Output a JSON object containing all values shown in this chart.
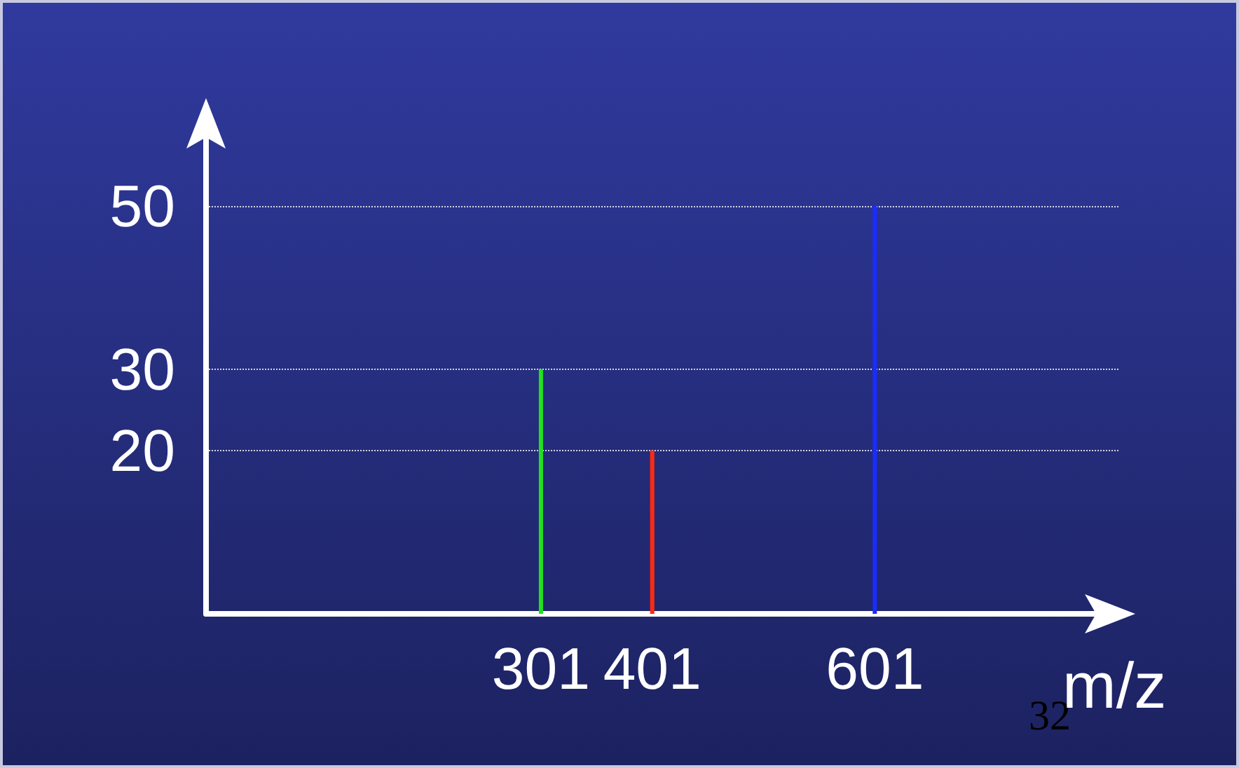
{
  "chart_data": {
    "type": "bar",
    "x": [
      301,
      401,
      601
    ],
    "values": [
      30,
      20,
      50
    ],
    "colors": [
      "#22e022",
      "#ff2a10",
      "#1a2cff"
    ],
    "xlim": [
      0,
      820
    ],
    "xticks": [
      301,
      401,
      601
    ],
    "ylim": [
      0,
      62
    ],
    "yticks": [
      20,
      30,
      50
    ],
    "xlabel": "m/z",
    "grid": "y",
    "annotations": [
      "32"
    ]
  }
}
